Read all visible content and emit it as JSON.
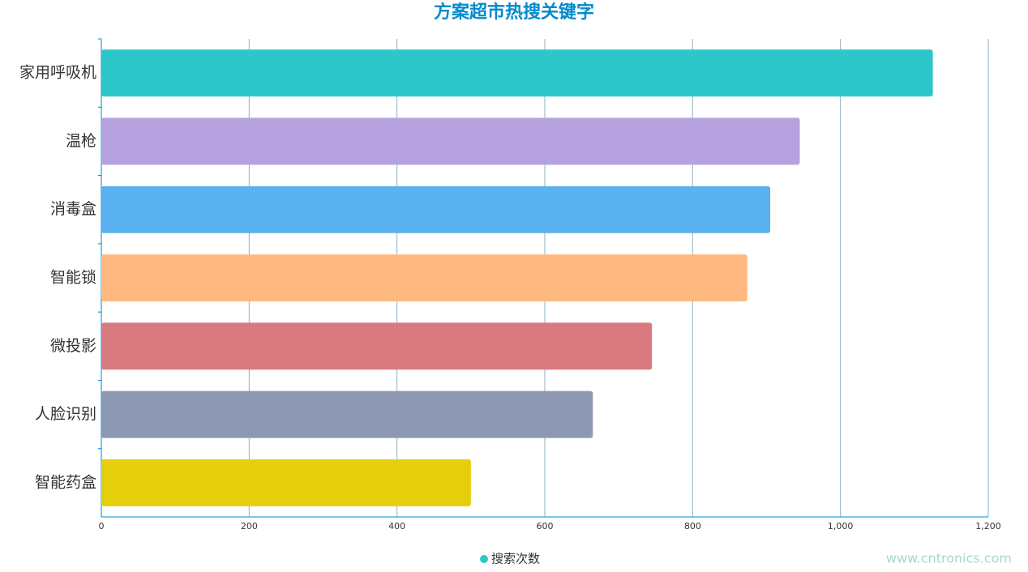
{
  "chart_data": {
    "type": "bar",
    "orientation": "horizontal",
    "title": "方案超市热搜关键字",
    "categories": [
      "家用呼吸机",
      "温枪",
      "消毒盒",
      "智能锁",
      "微投影",
      "人脸识别",
      "智能药盒"
    ],
    "series": [
      {
        "name": "搜索次数",
        "color": "#2ec7c9",
        "values": [
          1125,
          945,
          905,
          874,
          745,
          665,
          500
        ]
      }
    ],
    "colors": [
      "#2ec7c9",
      "#b6a2de",
      "#5ab1ef",
      "#ffb980",
      "#d87a80",
      "#8d98b3",
      "#e5cf0d"
    ],
    "xlim": [
      0,
      1200
    ],
    "xticks": [
      0,
      200,
      400,
      600,
      800,
      {
        "value": 1000,
        "label": "1,000"
      },
      {
        "value": 1200,
        "label": "1,200"
      }
    ],
    "grid": true,
    "legend": "bottom",
    "watermark": "www.cntronics.com"
  }
}
